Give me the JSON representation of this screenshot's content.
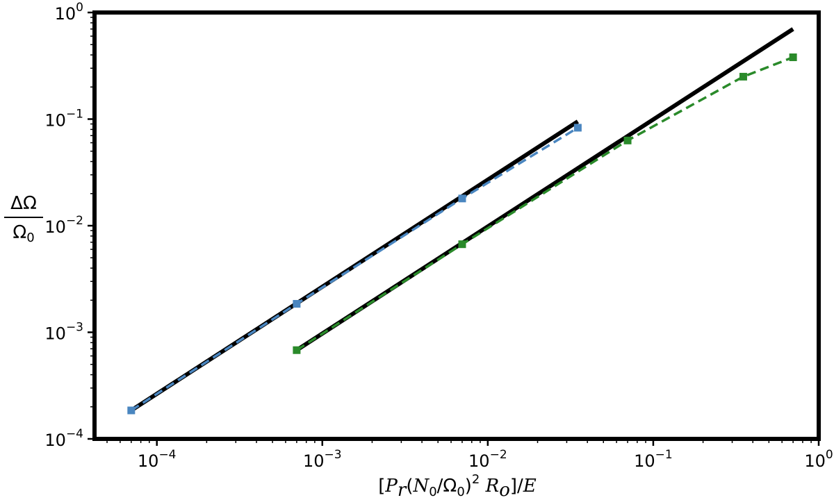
{
  "chart_data": {
    "type": "line",
    "title": "",
    "xlabel": "[P_r(N_0/Ω_0)^2 R_o]/E",
    "ylabel": "ΔΩ/Ω_0",
    "xscale": "log",
    "yscale": "log",
    "xlim": [
      4.2e-05,
      1.0
    ],
    "ylim": [
      0.0001,
      1.0
    ],
    "grid": false,
    "legend": "none",
    "x_ticks": [
      {
        "base": "10",
        "exp": "−4",
        "value": 0.0001
      },
      {
        "base": "10",
        "exp": "−3",
        "value": 0.001
      },
      {
        "base": "10",
        "exp": "−2",
        "value": 0.01
      },
      {
        "base": "10",
        "exp": "−1",
        "value": 0.1
      },
      {
        "base": "10",
        "exp": "0",
        "value": 1
      }
    ],
    "y_ticks": [
      {
        "base": "10",
        "exp": "−4",
        "value": 0.0001
      },
      {
        "base": "10",
        "exp": "−3",
        "value": 0.001
      },
      {
        "base": "10",
        "exp": "−2",
        "value": 0.01
      },
      {
        "base": "10",
        "exp": "−1",
        "value": 0.1
      },
      {
        "base": "10",
        "exp": "0",
        "value": 1
      }
    ],
    "series": [
      {
        "style": "dashed-markers",
        "color": "#4a86c0",
        "x": [
          7e-05,
          0.0007,
          0.007,
          0.035
        ],
        "y": [
          0.000185,
          0.00185,
          0.018,
          0.083
        ]
      },
      {
        "style": "dashed-markers",
        "color": "#2a8a2a",
        "x": [
          0.0007,
          0.007,
          0.07,
          0.35,
          0.7
        ],
        "y": [
          0.00068,
          0.0067,
          0.063,
          0.25,
          0.38
        ]
      },
      {
        "style": "solid",
        "color": "#000000",
        "x": [
          7e-05,
          0.035
        ],
        "y": [
          0.000185,
          0.095
        ]
      },
      {
        "style": "solid",
        "color": "#000000",
        "x": [
          0.0007,
          0.7
        ],
        "y": [
          0.00068,
          0.7
        ]
      }
    ]
  }
}
